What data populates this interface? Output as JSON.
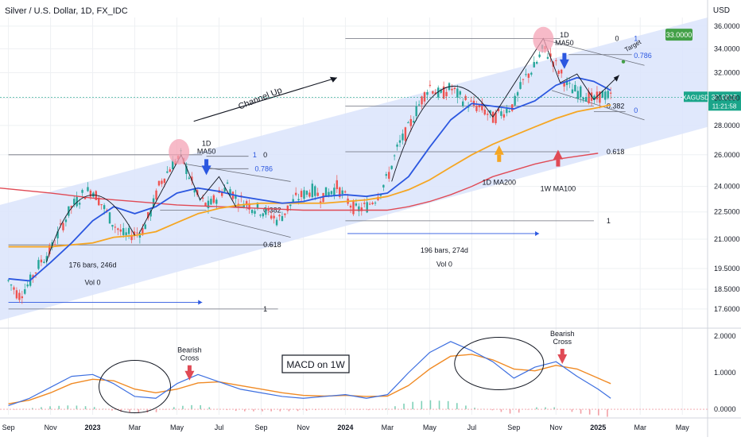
{
  "header": {
    "title": "Silver / U.S. Dollar, 1D, FX_IDC",
    "currency": "USD"
  },
  "colors": {
    "channel": "#dbe4fb",
    "ma50": "#2b57e0",
    "ma200": "#f5a623",
    "ma100w": "#e04a55",
    "macd": "#3d6fe0",
    "signal": "#f08a24",
    "hist_pos": "#7fd0b8",
    "hist_neg": "#f2a0a6",
    "down_arrow": "#2b57e0",
    "up_arrow_orange": "#f5a623",
    "up_arrow_red": "#e04a55",
    "bearish_arrow": "#e04a55",
    "price_tag": "#1aa58a",
    "target_tag": "#43a047",
    "fib": "#6b6f7a"
  },
  "chart_data": [
    {
      "type": "line",
      "name": "price",
      "ylim": [
        16.8,
        36.8
      ],
      "yticks": [
        "36.0000",
        "34.0000",
        "32.0000",
        "30.0000",
        "28.0000",
        "26.0000",
        "24.0000",
        "22.5000",
        "21.0000",
        "19.5000",
        "18.5000",
        "17.6000"
      ],
      "ytick_values": [
        36,
        34,
        32,
        30,
        28,
        26,
        24,
        22.5,
        21,
        19.5,
        18.5,
        17.6
      ],
      "xticks": [
        "Sep",
        "Nov",
        "2023",
        "Mar",
        "May",
        "Jul",
        "Sep",
        "Nov",
        "2024",
        "Mar",
        "May",
        "Jul",
        "Sep",
        "Nov",
        "2025",
        "Mar",
        "May"
      ],
      "xtick_positions": [
        0,
        2,
        4,
        6,
        8,
        10,
        12,
        14,
        16,
        18,
        20,
        22,
        24,
        26,
        28,
        30,
        32
      ],
      "xlim": [
        -0.4,
        33.2
      ],
      "price_points": [
        [
          0,
          18.9
        ],
        [
          0.5,
          18.2
        ],
        [
          1,
          18.8
        ],
        [
          1.5,
          19.8
        ],
        [
          2,
          20.4
        ],
        [
          2.5,
          21.6
        ],
        [
          3,
          22.8
        ],
        [
          3.6,
          23.6
        ],
        [
          4,
          23.8
        ],
        [
          4.6,
          22.6
        ],
        [
          5,
          21.8
        ],
        [
          5.5,
          21.2
        ],
        [
          6,
          21.3
        ],
        [
          6.4,
          21.5
        ],
        [
          6.8,
          22.6
        ],
        [
          7.2,
          24.2
        ],
        [
          7.8,
          25.4
        ],
        [
          8.2,
          25.9
        ],
        [
          8.6,
          24.6
        ],
        [
          9,
          23.3
        ],
        [
          9.5,
          22.8
        ],
        [
          10,
          23.5
        ],
        [
          10.4,
          24.1
        ],
        [
          10.8,
          23.3
        ],
        [
          11.2,
          23.1
        ],
        [
          11.6,
          22.8
        ],
        [
          12,
          22.6
        ],
        [
          12.4,
          22.4
        ],
        [
          12.8,
          22.0
        ],
        [
          13.2,
          22.6
        ],
        [
          13.6,
          23.2
        ],
        [
          14,
          23.5
        ],
        [
          14.4,
          23.8
        ],
        [
          14.8,
          23.4
        ],
        [
          15.2,
          23.6
        ],
        [
          15.6,
          24.0
        ],
        [
          16,
          23.3
        ],
        [
          16.5,
          22.6
        ],
        [
          17,
          22.8
        ],
        [
          17.5,
          23.4
        ],
        [
          18,
          24.5
        ],
        [
          18.5,
          26.5
        ],
        [
          19,
          27.8
        ],
        [
          19.5,
          29.5
        ],
        [
          20,
          31.0
        ],
        [
          20.5,
          30.2
        ],
        [
          21,
          30.8
        ],
        [
          21.5,
          30.0
        ],
        [
          22,
          29.5
        ],
        [
          22.5,
          29.2
        ],
        [
          23,
          28.5
        ],
        [
          23.5,
          29.0
        ],
        [
          24,
          29.5
        ],
        [
          24.5,
          31.5
        ],
        [
          25,
          32.5
        ],
        [
          25.4,
          34.0
        ],
        [
          25.8,
          33.2
        ],
        [
          26.2,
          32.0
        ],
        [
          26.6,
          30.8
        ],
        [
          27,
          30.5
        ],
        [
          27.4,
          30.3
        ],
        [
          27.8,
          29.8
        ],
        [
          28.2,
          30.3
        ],
        [
          28.6,
          30.1
        ]
      ],
      "ma50_points": [
        [
          0,
          19.0
        ],
        [
          1,
          18.9
        ],
        [
          2,
          19.8
        ],
        [
          3,
          20.8
        ],
        [
          4,
          22.0
        ],
        [
          5,
          22.8
        ],
        [
          6,
          22.4
        ],
        [
          7,
          22.8
        ],
        [
          8,
          23.6
        ],
        [
          9,
          23.9
        ],
        [
          10,
          23.7
        ],
        [
          11,
          23.4
        ],
        [
          12,
          23.2
        ],
        [
          13,
          23.0
        ],
        [
          14,
          23.1
        ],
        [
          15,
          23.4
        ],
        [
          16,
          23.5
        ],
        [
          17,
          23.4
        ],
        [
          18,
          23.6
        ],
        [
          19,
          24.6
        ],
        [
          20,
          26.5
        ],
        [
          21,
          28.4
        ],
        [
          22,
          29.6
        ],
        [
          23,
          29.4
        ],
        [
          24,
          29.2
        ],
        [
          25,
          29.8
        ],
        [
          26,
          31.0
        ],
        [
          27,
          31.6
        ],
        [
          27.8,
          31.3
        ],
        [
          28.6,
          30.6
        ]
      ],
      "ma200_points": [
        [
          0,
          20.6
        ],
        [
          2,
          20.6
        ],
        [
          4,
          20.8
        ],
        [
          5,
          21.1
        ],
        [
          6,
          21.2
        ],
        [
          7,
          21.4
        ],
        [
          8,
          21.9
        ],
        [
          9,
          22.4
        ],
        [
          10,
          22.7
        ],
        [
          11,
          22.9
        ],
        [
          12,
          23.0
        ],
        [
          13,
          23.0
        ],
        [
          14,
          23.0
        ],
        [
          15,
          23.0
        ],
        [
          16,
          23.1
        ],
        [
          17,
          23.2
        ],
        [
          18,
          23.4
        ],
        [
          19,
          23.8
        ],
        [
          20,
          24.4
        ],
        [
          21,
          25.2
        ],
        [
          22,
          26.0
        ],
        [
          23,
          26.7
        ],
        [
          24,
          27.3
        ],
        [
          25,
          27.9
        ],
        [
          26,
          28.5
        ],
        [
          27,
          29.0
        ],
        [
          28,
          29.3
        ],
        [
          28.6,
          29.5
        ]
      ],
      "ma100w_points": [
        [
          -0.4,
          23.9
        ],
        [
          2,
          23.6
        ],
        [
          4,
          23.3
        ],
        [
          6,
          23.1
        ],
        [
          8,
          22.9
        ],
        [
          10,
          22.8
        ],
        [
          12,
          22.7
        ],
        [
          14,
          22.6
        ],
        [
          16,
          22.6
        ],
        [
          18,
          22.6
        ],
        [
          19,
          22.8
        ],
        [
          20,
          23.1
        ],
        [
          21,
          23.5
        ],
        [
          22,
          24.0
        ],
        [
          23,
          24.6
        ],
        [
          24,
          25.0
        ],
        [
          25,
          25.4
        ],
        [
          26,
          25.7
        ],
        [
          27,
          25.9
        ],
        [
          28,
          26.1
        ]
      ],
      "annotations": {
        "channel_label": "Channel Up",
        "ma50_1": "1D\nMA50",
        "ma50_2": "1D\nMA50",
        "ma200_label": "1D MA200",
        "ma100w_label": "1W MA100",
        "bars_1": "176 bars, 246d",
        "vol_1": "Vol 0",
        "bars_2": "196 bars, 274d",
        "vol_2": "Vol 0",
        "target_label": "Target",
        "target_price": "33.0000",
        "symbol": "XAGUSD",
        "last_price": "30.0815",
        "countdown": "11:21:58",
        "fib1": [
          "0",
          "1",
          "0.786",
          "0",
          "0.382",
          "0.618",
          "1"
        ],
        "fib2": [
          "0",
          "1",
          "0.786",
          "0",
          "0.382",
          "0.618",
          "1"
        ]
      }
    },
    {
      "type": "line",
      "name": "MACD",
      "title": "MACD on 1W",
      "ylim": [
        -0.15,
        2.15
      ],
      "yticks": [
        "2.0000",
        "1.0000",
        "0.0000"
      ],
      "ytick_values": [
        2,
        1,
        0
      ],
      "macd_points": [
        [
          0,
          0.1
        ],
        [
          1,
          0.3
        ],
        [
          2,
          0.6
        ],
        [
          3,
          0.9
        ],
        [
          4,
          0.95
        ],
        [
          5,
          0.7
        ],
        [
          6,
          0.35
        ],
        [
          7,
          0.3
        ],
        [
          8,
          0.7
        ],
        [
          9,
          0.95
        ],
        [
          10,
          0.75
        ],
        [
          11,
          0.55
        ],
        [
          12,
          0.45
        ],
        [
          13,
          0.35
        ],
        [
          14,
          0.3
        ],
        [
          15,
          0.35
        ],
        [
          16,
          0.4
        ],
        [
          17,
          0.3
        ],
        [
          18,
          0.4
        ],
        [
          19,
          1.0
        ],
        [
          20,
          1.55
        ],
        [
          21,
          1.85
        ],
        [
          22,
          1.6
        ],
        [
          23,
          1.3
        ],
        [
          24,
          0.85
        ],
        [
          25,
          1.15
        ],
        [
          26,
          1.3
        ],
        [
          27,
          0.9
        ],
        [
          28,
          0.55
        ],
        [
          28.6,
          0.3
        ]
      ],
      "signal_points": [
        [
          0,
          0.15
        ],
        [
          1,
          0.25
        ],
        [
          2,
          0.45
        ],
        [
          3,
          0.7
        ],
        [
          4,
          0.82
        ],
        [
          5,
          0.78
        ],
        [
          6,
          0.55
        ],
        [
          7,
          0.45
        ],
        [
          8,
          0.55
        ],
        [
          9,
          0.72
        ],
        [
          10,
          0.75
        ],
        [
          11,
          0.65
        ],
        [
          12,
          0.55
        ],
        [
          13,
          0.45
        ],
        [
          14,
          0.38
        ],
        [
          15,
          0.36
        ],
        [
          16,
          0.38
        ],
        [
          17,
          0.35
        ],
        [
          18,
          0.36
        ],
        [
          19,
          0.65
        ],
        [
          20,
          1.1
        ],
        [
          21,
          1.45
        ],
        [
          22,
          1.5
        ],
        [
          23,
          1.35
        ],
        [
          24,
          1.1
        ],
        [
          25,
          1.05
        ],
        [
          26,
          1.2
        ],
        [
          27,
          1.1
        ],
        [
          28,
          0.85
        ],
        [
          28.6,
          0.7
        ]
      ],
      "annotations": {
        "bearish_1": "Bearish\nCross",
        "bearish_2": "Bearish\nCross"
      }
    }
  ]
}
